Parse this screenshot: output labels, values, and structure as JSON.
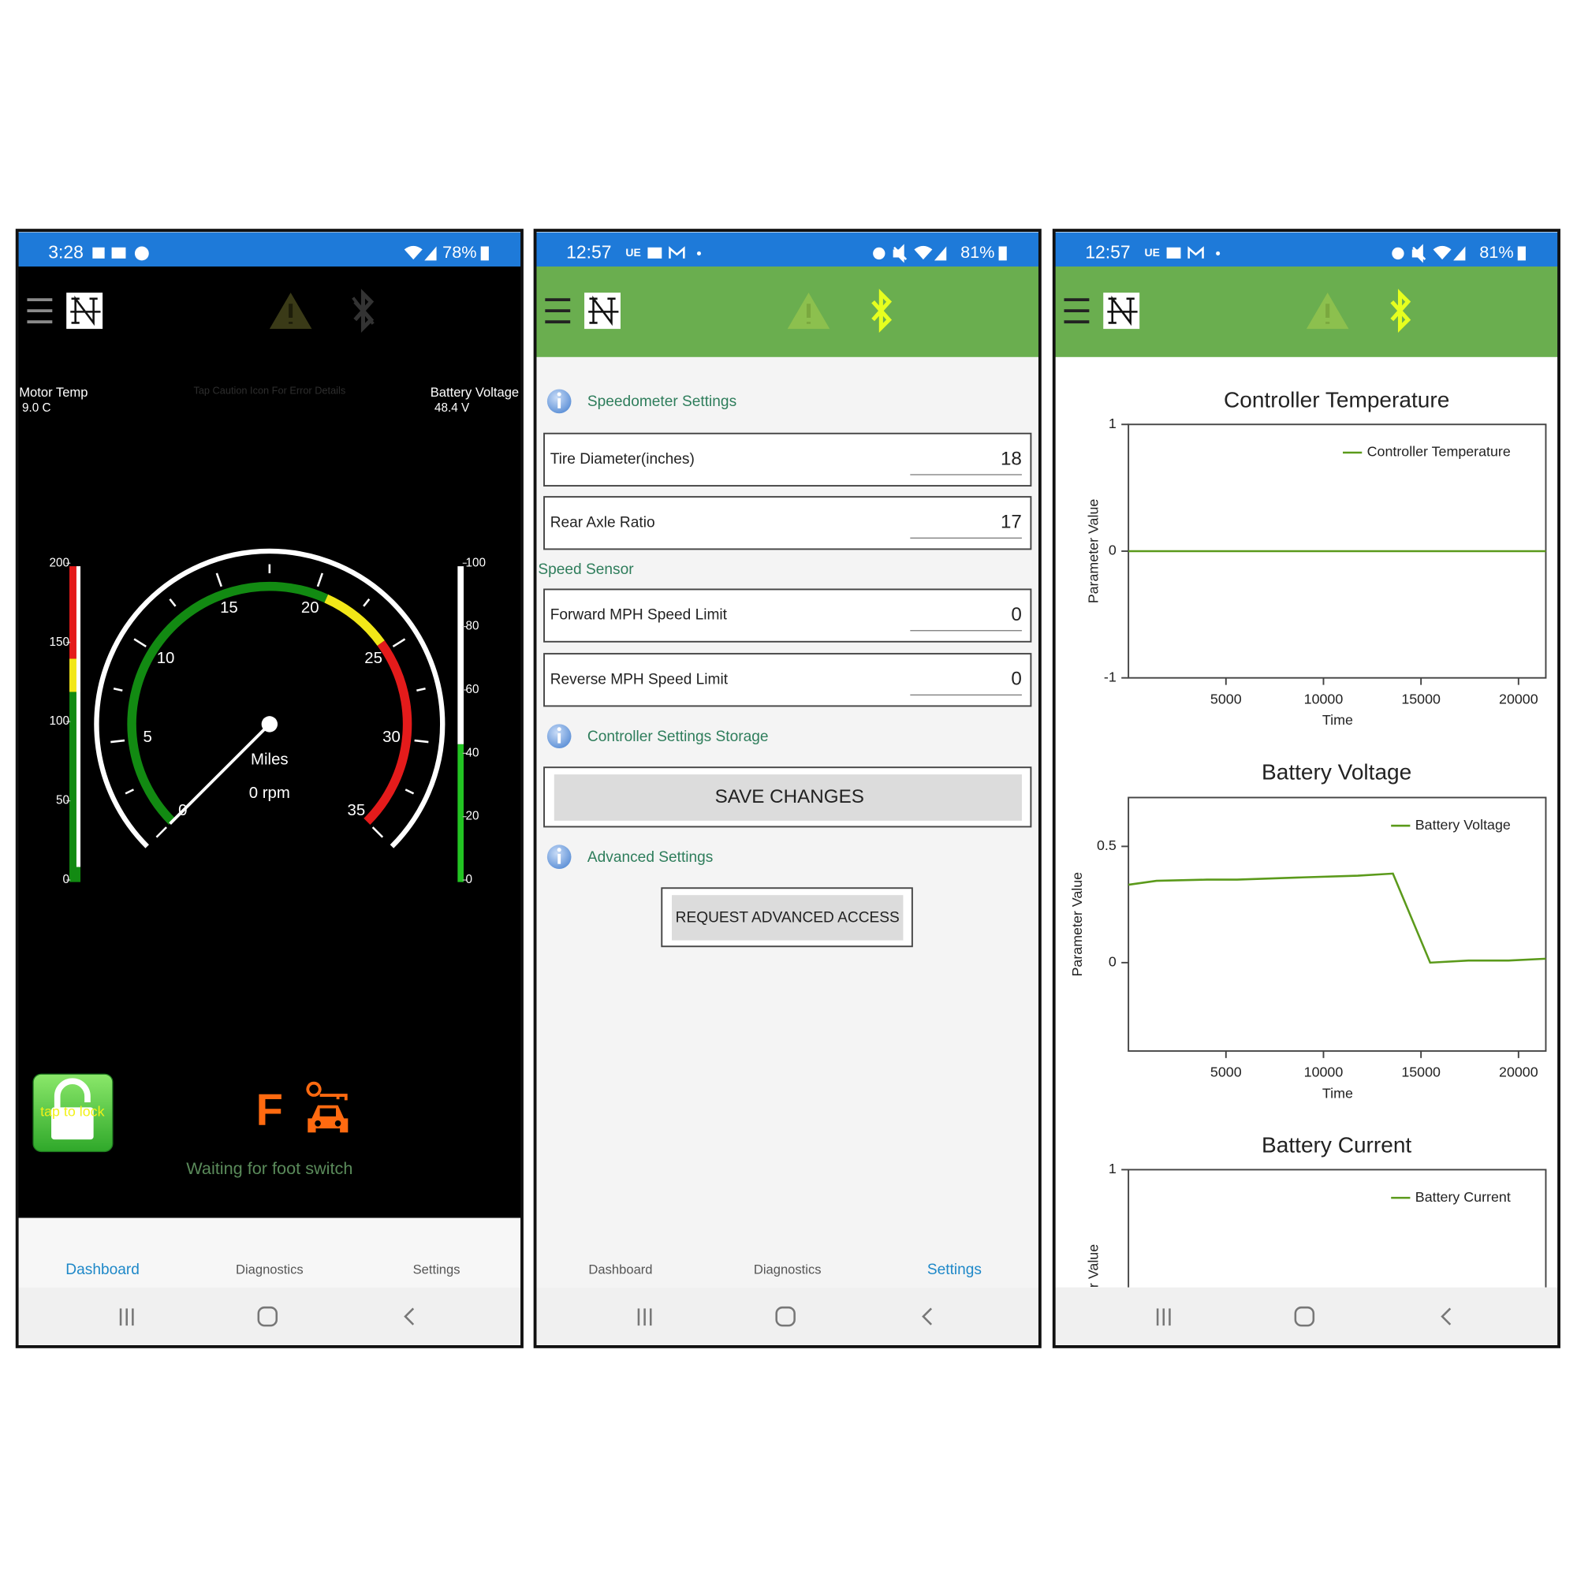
{
  "screens": [
    {
      "status_bar": {
        "time": "3:28",
        "battery": "78%"
      },
      "active_tab": 0,
      "motor_temp": {
        "label": "Motor Temp",
        "value": "9.0 C"
      },
      "caution_hint": "Tap Caution Icon For Error Details",
      "battery_voltage": {
        "label": "Battery Voltage",
        "value": "48.4 V"
      },
      "speedometer": {
        "labels": [
          0,
          5,
          10,
          15,
          20,
          25,
          30,
          35
        ],
        "unit": "Miles",
        "rpm": "0 rpm"
      },
      "temp_scale": [
        200,
        150,
        100,
        50,
        0
      ],
      "voltage_scale": [
        100,
        80,
        60,
        40,
        20,
        0
      ],
      "lock_button": "tap to lock",
      "gear": "F",
      "message": "Waiting for foot switch",
      "tabs": [
        "Dashboard",
        "Diagnostics",
        "Settings"
      ]
    },
    {
      "status_bar": {
        "time": "12:57",
        "carrier": "UE",
        "battery": "81%"
      },
      "active_tab": 2,
      "speedometer_settings": {
        "heading": "Speedometer Settings",
        "fields": [
          {
            "label": "Tire Diameter(inches)",
            "value": 18
          },
          {
            "label": "Rear Axle Ratio",
            "value": 17
          }
        ]
      },
      "speed_sensor": {
        "heading": "Speed Sensor",
        "fields": [
          {
            "label": "Forward MPH Speed Limit",
            "value": 0
          },
          {
            "label": "Reverse MPH Speed Limit",
            "value": 0
          }
        ]
      },
      "storage": {
        "heading": "Controller Settings Storage",
        "button": "SAVE CHANGES"
      },
      "advanced": {
        "heading": "Advanced Settings",
        "button": "REQUEST ADVANCED ACCESS"
      },
      "tabs": [
        "Dashboard",
        "Diagnostics",
        "Settings"
      ]
    },
    {
      "status_bar": {
        "time": "12:57",
        "carrier": "UE",
        "battery": "81%"
      }
    }
  ],
  "chart_data": [
    {
      "type": "line",
      "title": "Controller Temperature",
      "xlabel": "Time",
      "ylabel": "Parameter Value",
      "xlim": [
        0,
        21400
      ],
      "ylim": [
        -1,
        1
      ],
      "xticks": [
        5000,
        10000,
        15000,
        20000
      ],
      "yticks": [
        -1,
        0,
        1
      ],
      "x": [
        0,
        21400
      ],
      "series": [
        {
          "name": "Controller Temperature",
          "color": "#5b9a1b",
          "values": [
            0,
            0
          ]
        }
      ]
    },
    {
      "type": "line",
      "title": "Battery Voltage",
      "xlabel": "Time",
      "ylabel": "Parameter Value",
      "xlim": [
        0,
        21400
      ],
      "ylim": [
        -0.38,
        0.71
      ],
      "xticks": [
        5000,
        10000,
        15000,
        20000
      ],
      "yticks": [
        0,
        0.5
      ],
      "x": [
        0,
        1440,
        4020,
        5570,
        8670,
        11760,
        13560,
        15470,
        17430,
        19490,
        21400
      ],
      "series": [
        {
          "name": "Battery Voltage",
          "color": "#5b9a1b",
          "values": [
            0.335,
            0.352,
            0.357,
            0.357,
            0.366,
            0.374,
            0.383,
            0,
            0.009,
            0.009,
            0.017
          ]
        }
      ]
    },
    {
      "type": "line",
      "title": "Battery Current",
      "ylabel": "Parameter Value",
      "ylim": [
        -1,
        1
      ],
      "yticks": [
        1
      ],
      "series": [
        {
          "name": "Battery Current",
          "color": "#5b9a1b"
        }
      ]
    }
  ]
}
